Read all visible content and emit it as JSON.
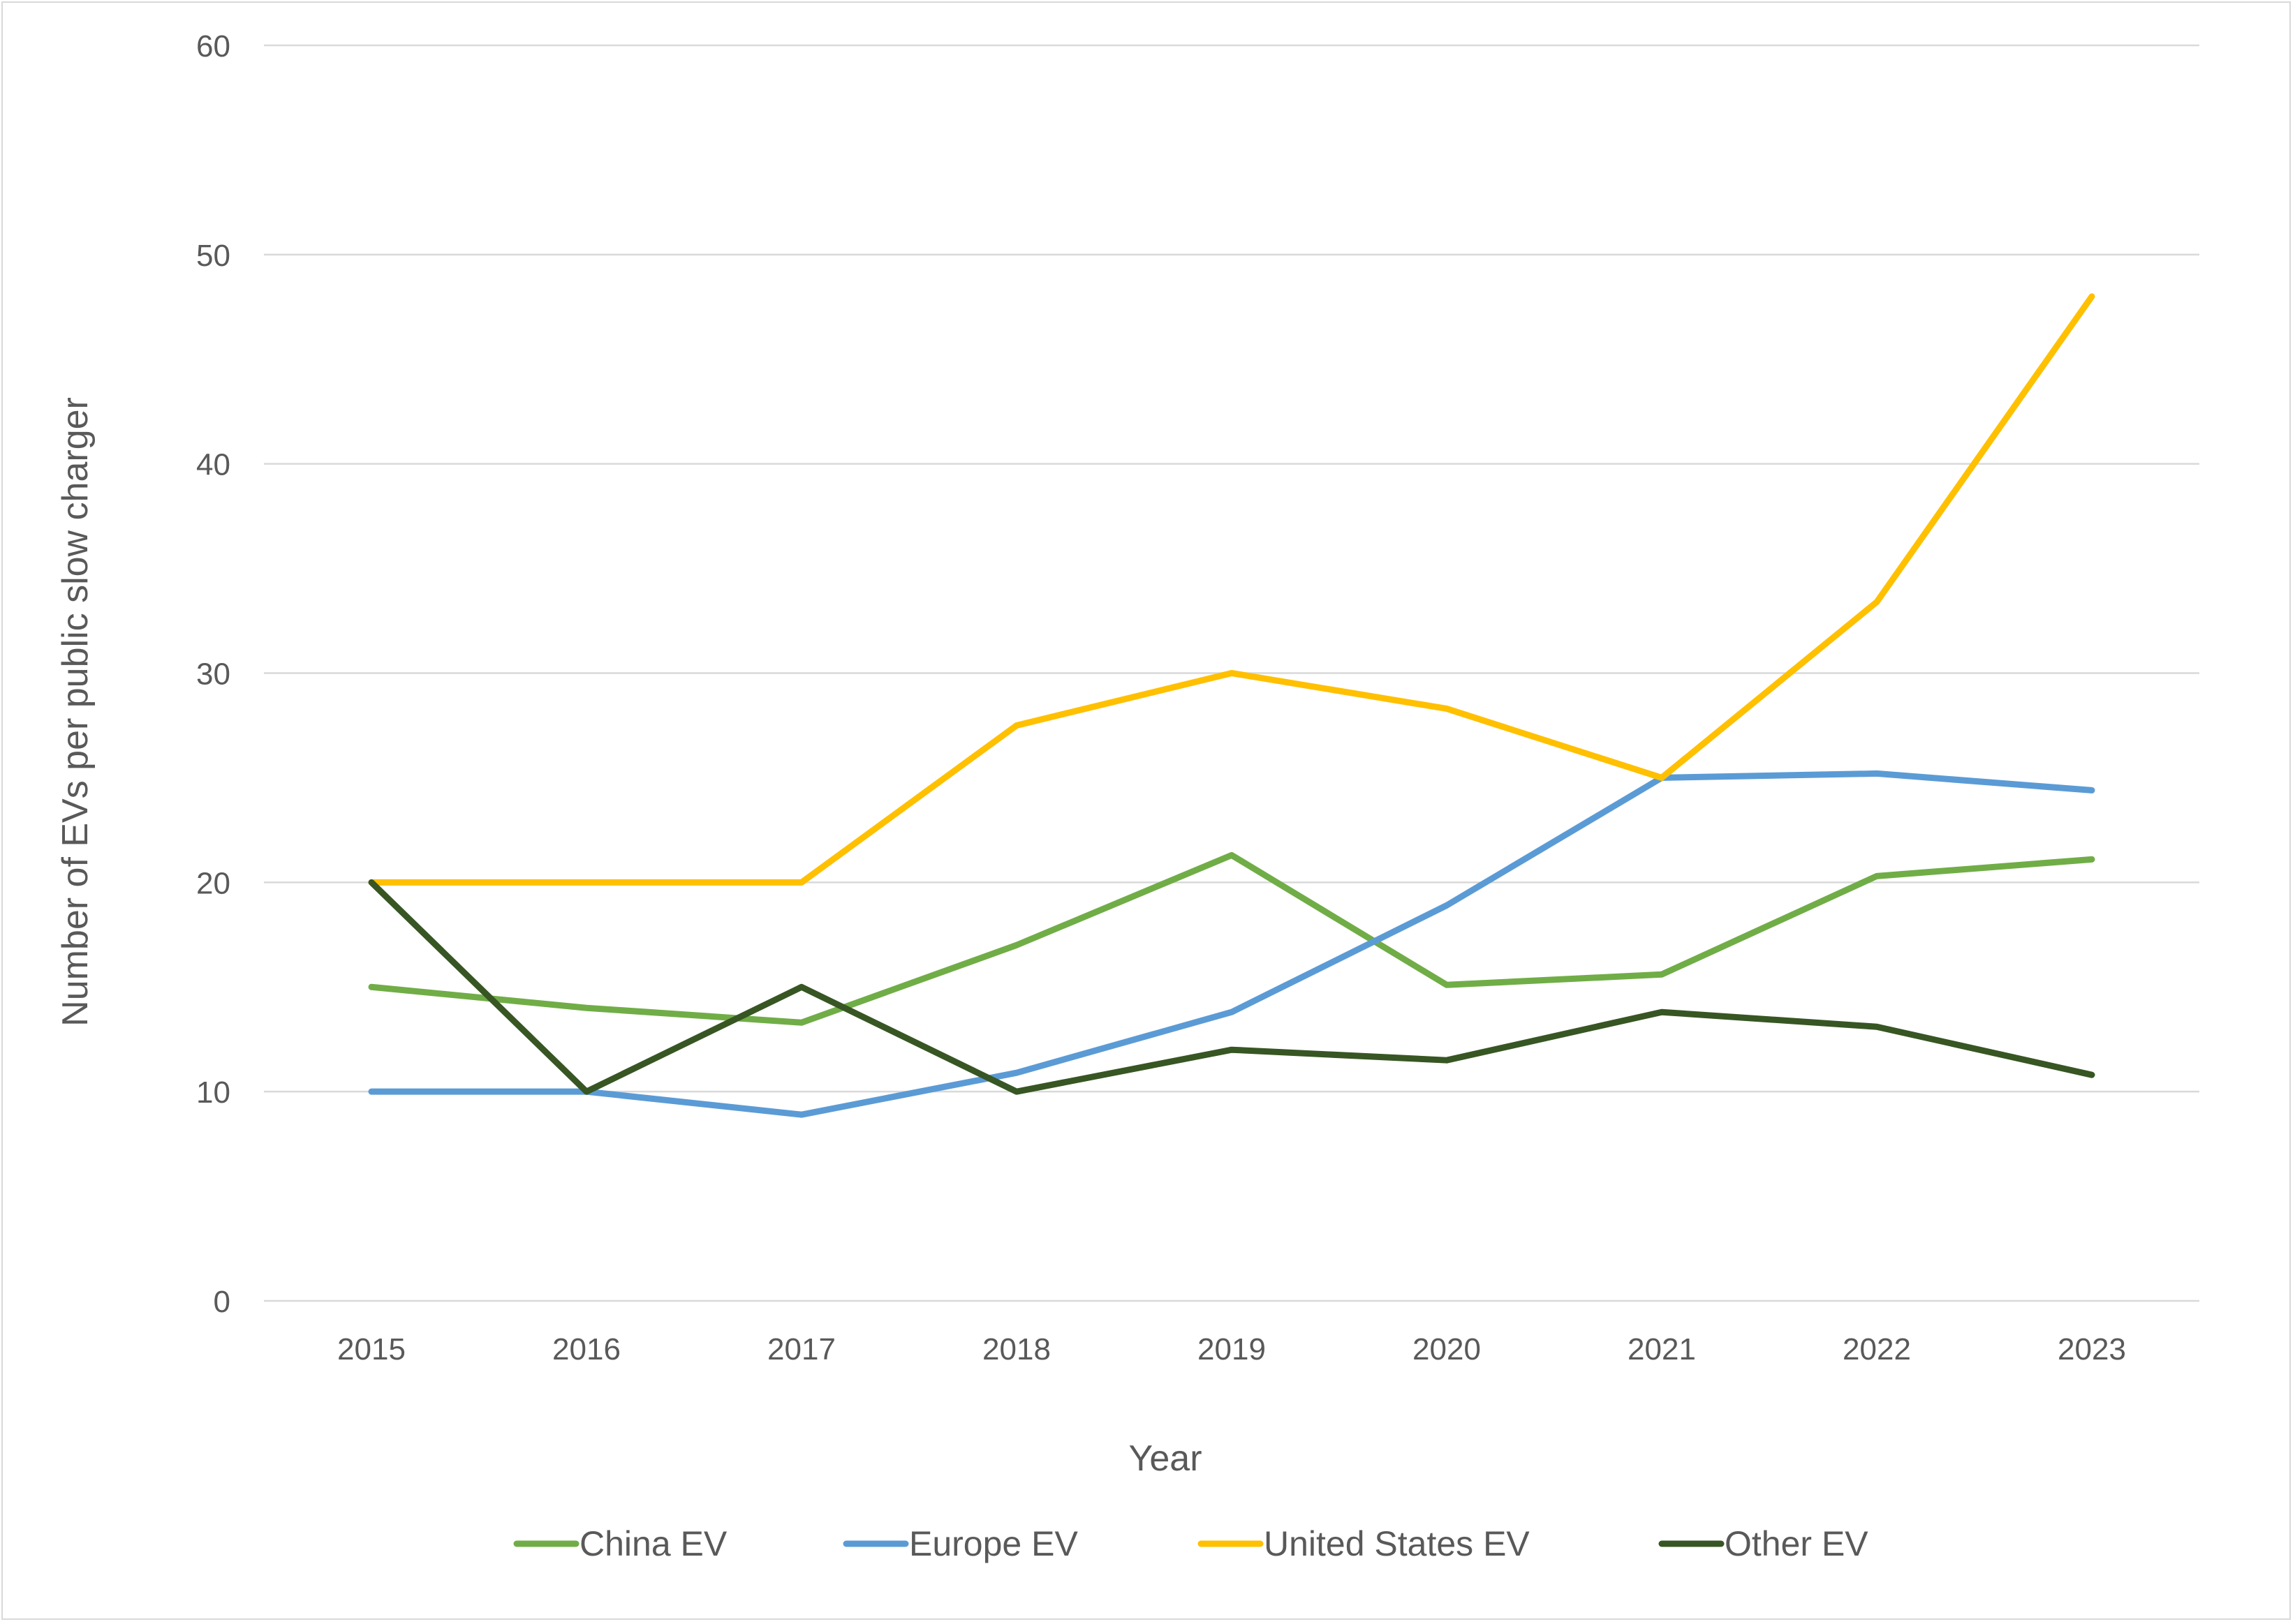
{
  "chart_data": {
    "type": "line",
    "title": "",
    "xlabel": "Year",
    "ylabel": "Number of EVs per public slow charger",
    "ylim": [
      0,
      60
    ],
    "yticks": [
      0,
      10,
      20,
      30,
      40,
      50,
      60
    ],
    "grid": true,
    "legend_position": "bottom",
    "categories": [
      "2015",
      "2016",
      "2017",
      "2018",
      "2019",
      "2020",
      "2021",
      "2022",
      "2023"
    ],
    "series": [
      {
        "name": "China EV",
        "color": "#70ad47",
        "values": [
          15,
          14,
          13.3,
          17,
          21.3,
          15.1,
          15.6,
          20.3,
          21.1
        ]
      },
      {
        "name": "Europe EV",
        "color": "#5b9bd5",
        "values": [
          10,
          10,
          8.9,
          10.9,
          13.8,
          18.9,
          25,
          25.2,
          24.4
        ]
      },
      {
        "name": "United States EV",
        "color": "#ffc000",
        "values": [
          20,
          20,
          20,
          27.5,
          30,
          28.3,
          25,
          33.4,
          48
        ]
      },
      {
        "name": "Other EV",
        "color": "#375623",
        "values": [
          20,
          10,
          15,
          10,
          12,
          11.5,
          13.8,
          13.1,
          10.8
        ]
      }
    ]
  }
}
